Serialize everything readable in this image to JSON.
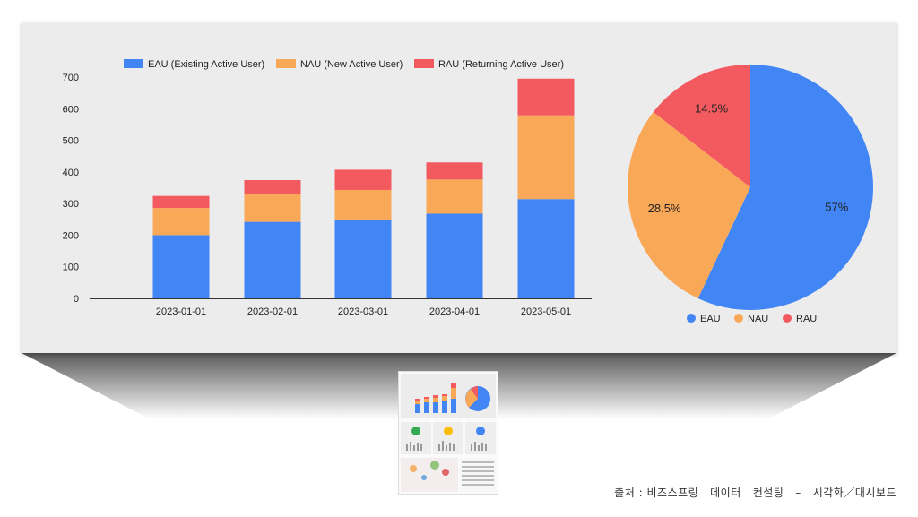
{
  "chart_data": [
    {
      "type": "bar",
      "stacked": true,
      "categories": [
        "2023-01-01",
        "2023-02-01",
        "2023-03-01",
        "2023-04-01",
        "2023-05-01"
      ],
      "series": [
        {
          "name": "EAU (Existing Active User)",
          "color": "#4285f4",
          "values": [
            200,
            242,
            247,
            268,
            314
          ]
        },
        {
          "name": "NAU (New Active User)",
          "color": "#f9a857",
          "values": [
            86,
            88,
            96,
            108,
            265
          ]
        },
        {
          "name": "RAU (Returning Active User)",
          "color": "#f25a60",
          "values": [
            38,
            44,
            64,
            54,
            116
          ]
        }
      ],
      "ylim": [
        0,
        700
      ],
      "yticks": [
        0,
        100,
        200,
        300,
        400,
        500,
        600,
        700
      ],
      "legend": "top",
      "grid": false
    },
    {
      "type": "pie",
      "slices": [
        {
          "name": "EAU",
          "value": 57,
          "label": "57%",
          "color": "#4285f4"
        },
        {
          "name": "NAU",
          "value": 28.5,
          "label": "28.5%",
          "color": "#f9a857"
        },
        {
          "name": "RAU",
          "value": 14.5,
          "label": "14.5%",
          "color": "#f25a60"
        }
      ],
      "legend": "bottom"
    }
  ],
  "caption": "출처 : 비즈스프링   데이터   컨설팅   –   시각화／대시보드"
}
